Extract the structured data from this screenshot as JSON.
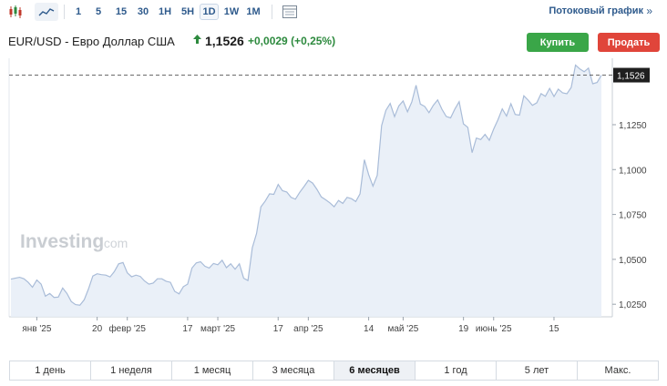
{
  "toolbar": {
    "icons": [
      "candlestick-chart-icon",
      "area-chart-icon",
      "data-table-icon"
    ],
    "timeframes": [
      "1",
      "5",
      "15",
      "30",
      "1H",
      "5H",
      "1D",
      "1W",
      "1M"
    ],
    "active_timeframe": "1D",
    "stream_label": "Потоковый график",
    "stream_arrow": "»"
  },
  "header": {
    "pair_name": "EUR/USD - Евро Доллар США",
    "direction_icon": "up-arrow-icon",
    "price": "1,1526",
    "change": "+0,0029",
    "change_pct": "(+0,25%)",
    "buy_label": "Купить",
    "sell_label": "Продать"
  },
  "colors": {
    "positive": "#2d8a3e",
    "buy": "#3aa648",
    "sell": "#e0453a",
    "link": "#2e5a8c",
    "area_fill": "#e8eef7",
    "line": "#a9bcd8"
  },
  "watermark": {
    "brand": "Investing",
    "suffix": ".com"
  },
  "chart_data": {
    "type": "area",
    "series": [
      {
        "values": [
          1.039,
          1.0395,
          1.04,
          1.0392,
          1.0372,
          1.0345,
          1.0385,
          1.0362,
          1.0295,
          1.031,
          1.0288,
          1.029,
          1.034,
          1.031,
          1.0265,
          1.0248,
          1.0245,
          1.0275,
          1.0335,
          1.0407,
          1.042,
          1.0415,
          1.0412,
          1.0402,
          1.0432,
          1.0475,
          1.0482,
          1.0425,
          1.0403,
          1.0412,
          1.0405,
          1.038,
          1.0362,
          1.0368,
          1.0392,
          1.0392,
          1.0378,
          1.0372,
          1.0322,
          1.0308,
          1.0348,
          1.0362,
          1.0452,
          1.048,
          1.0487,
          1.0462,
          1.0452,
          1.0477,
          1.047,
          1.0495,
          1.0454,
          1.0475,
          1.0445,
          1.0475,
          1.0395,
          1.0382,
          1.0565,
          1.0645,
          1.0792,
          1.0825,
          1.0865,
          1.0862,
          1.0917,
          1.0882,
          1.0875,
          1.0845,
          1.0835,
          1.0873,
          1.0905,
          1.094,
          1.0925,
          1.089,
          1.0848,
          1.0832,
          1.0815,
          1.0793,
          1.0828,
          1.0812,
          1.0845,
          1.0838,
          1.0822,
          1.0865,
          1.1055,
          1.0972,
          1.0908,
          1.0968,
          1.1245,
          1.133,
          1.1368,
          1.1295,
          1.1355,
          1.1382,
          1.1322,
          1.1376,
          1.147,
          1.1365,
          1.1352,
          1.1317,
          1.1358,
          1.1388,
          1.1336,
          1.1296,
          1.1288,
          1.1337,
          1.1378,
          1.1255,
          1.1235,
          1.1094,
          1.1176,
          1.1167,
          1.1196,
          1.1163,
          1.1226,
          1.1278,
          1.1338,
          1.1298,
          1.1367,
          1.1307,
          1.1303,
          1.1411,
          1.1387,
          1.1358,
          1.1372,
          1.1423,
          1.1408,
          1.1452,
          1.1407,
          1.1448,
          1.1428,
          1.1422,
          1.1458,
          1.1582,
          1.156,
          1.1545,
          1.1565,
          1.1478,
          1.1485,
          1.1526
        ]
      }
    ],
    "last_value": 1.1526,
    "last_value_label": "1,1526",
    "y_ticks": [
      {
        "value": 1.025,
        "label": "1,0250"
      },
      {
        "value": 1.05,
        "label": "1,0500"
      },
      {
        "value": 1.075,
        "label": "1,0750"
      },
      {
        "value": 1.1,
        "label": "1,1000"
      },
      {
        "value": 1.125,
        "label": "1,1250"
      }
    ],
    "x_ticks": [
      {
        "index": 6,
        "label": "янв '25"
      },
      {
        "index": 20,
        "label": "20"
      },
      {
        "index": 27,
        "label": "февр '25"
      },
      {
        "index": 41,
        "label": "17"
      },
      {
        "index": 48,
        "label": "март '25"
      },
      {
        "index": 62,
        "label": "17"
      },
      {
        "index": 69,
        "label": "апр '25"
      },
      {
        "index": 83,
        "label": "14"
      },
      {
        "index": 91,
        "label": "май '25"
      },
      {
        "index": 105,
        "label": "19"
      },
      {
        "index": 112,
        "label": "июнь '25"
      },
      {
        "index": 126,
        "label": "15"
      }
    ],
    "ylim": [
      1.018,
      1.162
    ],
    "grid": false
  },
  "ranges": {
    "items": [
      "1 день",
      "1 неделя",
      "1 месяц",
      "3 месяца",
      "6 месяцев",
      "1 год",
      "5 лет",
      "Макс."
    ],
    "active": "6 месяцев"
  }
}
